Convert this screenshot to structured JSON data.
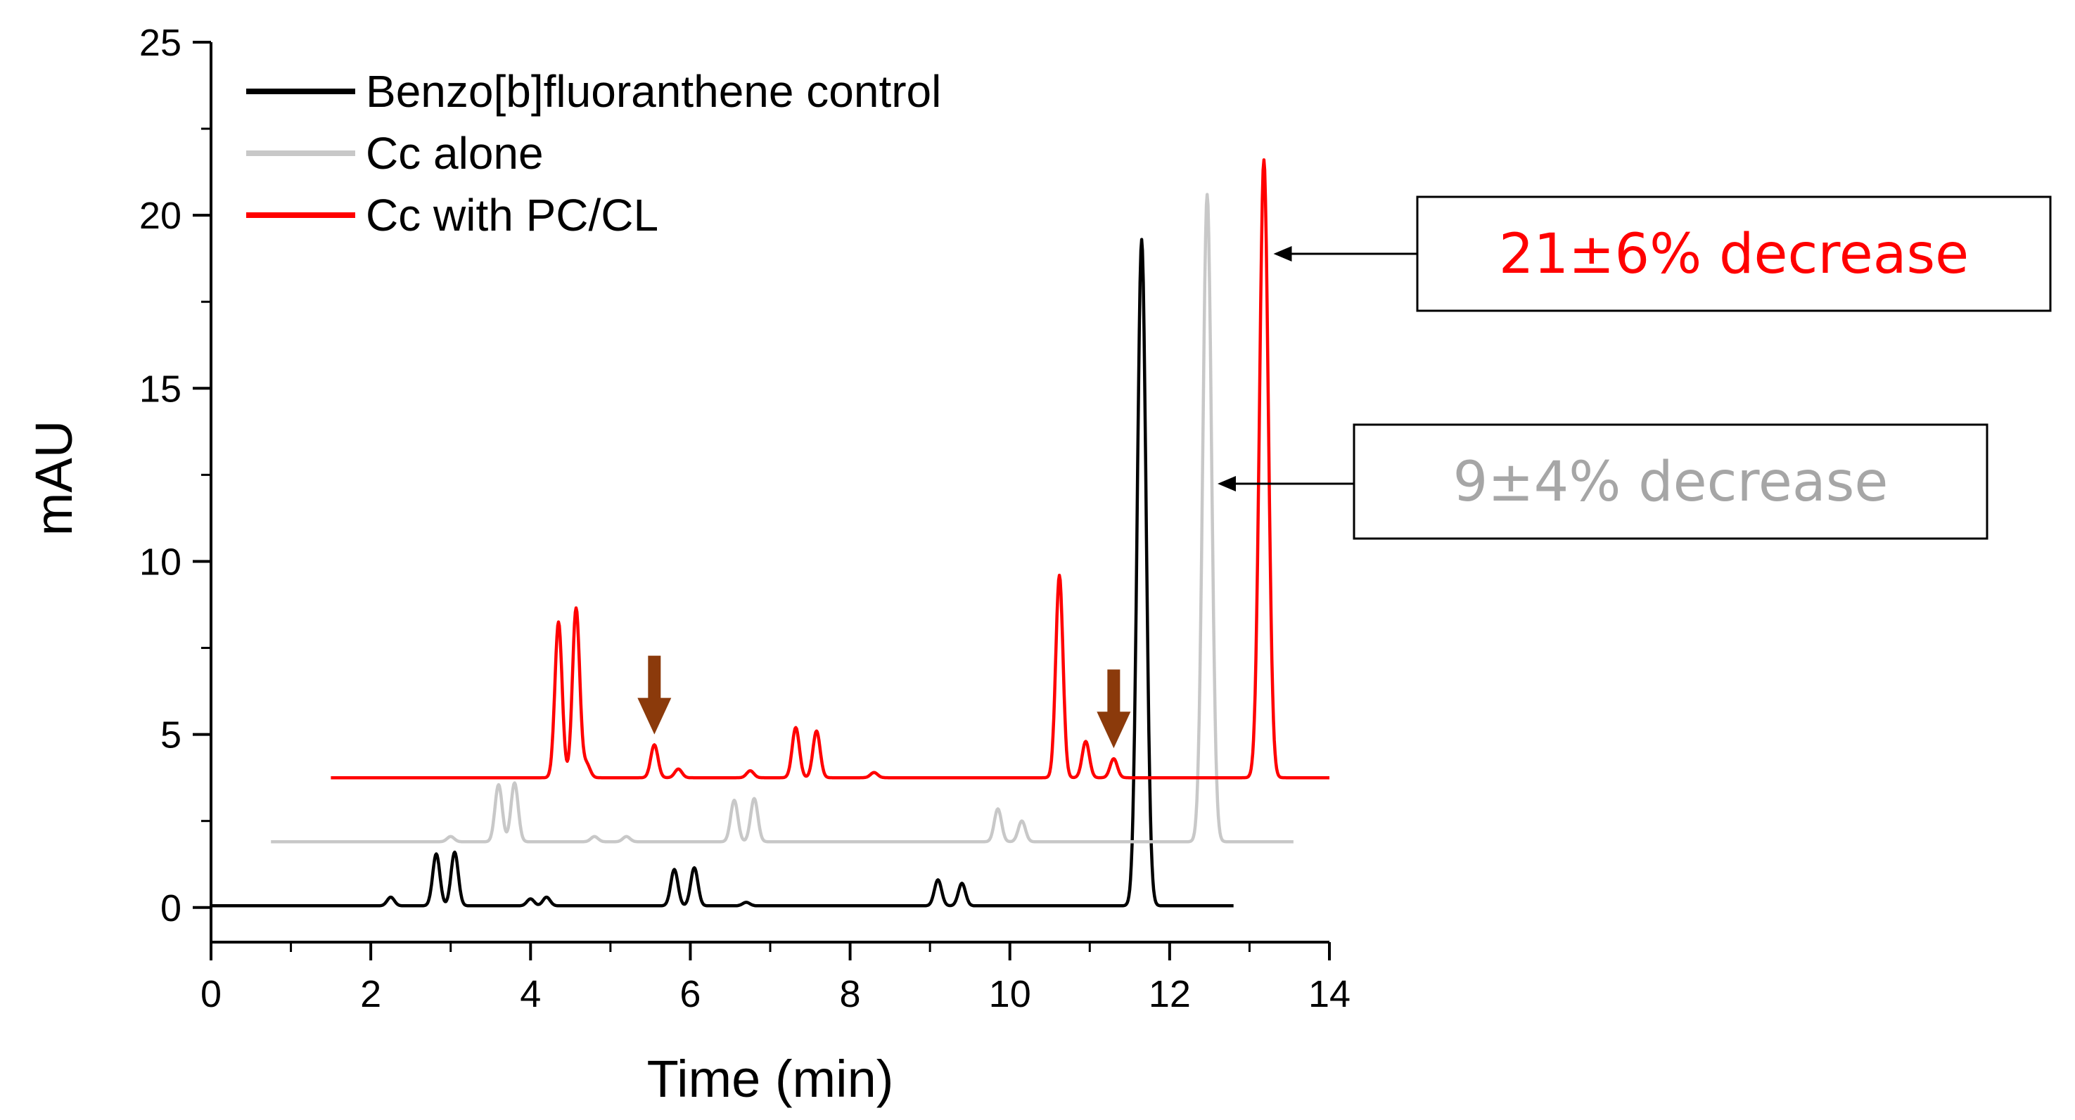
{
  "chart_data": {
    "type": "line",
    "title": "",
    "xlabel": "Time (min)",
    "ylabel": "mAU",
    "xlim": [
      0,
      14
    ],
    "ylim": [
      -1,
      25
    ],
    "x_ticks": [
      0,
      2,
      4,
      6,
      8,
      10,
      12,
      14
    ],
    "y_ticks": [
      0,
      5,
      10,
      15,
      20,
      25
    ],
    "x_tick_labels": [
      "0",
      "2",
      "4",
      "6",
      "8",
      "10",
      "12",
      "14"
    ],
    "y_tick_labels": [
      "0",
      "5",
      "10",
      "15",
      "20",
      "25"
    ],
    "grid": false,
    "legend_position": "top-left",
    "series": [
      {
        "name": "Benzo[b]fluoranthene control",
        "color": "#000000",
        "baseline": 0.05,
        "x_start": 0,
        "x_end": 12.8,
        "peaks": [
          {
            "x": 2.25,
            "y": 0.3
          },
          {
            "x": 2.82,
            "y": 1.55
          },
          {
            "x": 3.05,
            "y": 1.6
          },
          {
            "x": 4.0,
            "y": 0.25
          },
          {
            "x": 4.2,
            "y": 0.3
          },
          {
            "x": 5.8,
            "y": 1.1
          },
          {
            "x": 6.05,
            "y": 1.15
          },
          {
            "x": 6.7,
            "y": 0.15
          },
          {
            "x": 9.1,
            "y": 0.8
          },
          {
            "x": 9.4,
            "y": 0.7
          },
          {
            "x": 11.65,
            "y": 19.3
          }
        ]
      },
      {
        "name": "Cc alone",
        "color": "#c8c8c8",
        "baseline": 1.9,
        "x_start": 0.75,
        "x_end": 13.55,
        "peaks": [
          {
            "x": 3.0,
            "y": 2.05
          },
          {
            "x": 3.6,
            "y": 3.55
          },
          {
            "x": 3.8,
            "y": 3.6
          },
          {
            "x": 4.8,
            "y": 2.05
          },
          {
            "x": 5.2,
            "y": 2.05
          },
          {
            "x": 6.55,
            "y": 3.1
          },
          {
            "x": 6.8,
            "y": 3.15
          },
          {
            "x": 9.85,
            "y": 2.85
          },
          {
            "x": 10.15,
            "y": 2.5
          },
          {
            "x": 12.47,
            "y": 20.6
          }
        ]
      },
      {
        "name": "Cc with PC/CL",
        "color": "#ff0000",
        "baseline": 3.75,
        "x_start": 1.5,
        "x_end": 14.0,
        "peaks": [
          {
            "x": 4.35,
            "y": 8.25
          },
          {
            "x": 4.57,
            "y": 8.65
          },
          {
            "x": 4.7,
            "y": 4.15
          },
          {
            "x": 5.55,
            "y": 4.7
          },
          {
            "x": 5.85,
            "y": 4.0
          },
          {
            "x": 6.75,
            "y": 3.95
          },
          {
            "x": 7.32,
            "y": 5.2
          },
          {
            "x": 7.58,
            "y": 5.1
          },
          {
            "x": 8.3,
            "y": 3.9
          },
          {
            "x": 10.62,
            "y": 9.6
          },
          {
            "x": 10.95,
            "y": 4.8
          },
          {
            "x": 11.3,
            "y": 4.3
          },
          {
            "x": 13.18,
            "y": 21.6
          }
        ]
      }
    ],
    "annotations": [
      {
        "text": "21±6% decrease",
        "color": "#ff0000",
        "points_to": {
          "x": 13.3,
          "y": 18.9
        }
      },
      {
        "text": "9±4% decrease",
        "color": "#a6a6a6",
        "points_to": {
          "x": 12.6,
          "y": 12.4
        }
      }
    ],
    "arrow_markers": [
      {
        "x": 5.55,
        "y": 5.0,
        "color": "#8b3a0b"
      },
      {
        "x": 11.3,
        "y": 4.6,
        "color": "#8b3a0b"
      }
    ]
  }
}
